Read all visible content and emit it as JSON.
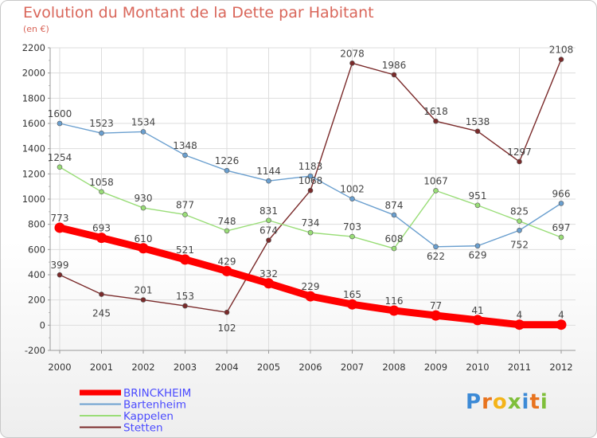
{
  "header": {
    "title": "Evolution du Montant de la Dette par Habitant",
    "subtitle": "(en €)"
  },
  "logo": {
    "text": "Proxiti",
    "letters": [
      "P",
      "r",
      "o",
      "x",
      "i",
      "t",
      "i"
    ],
    "colors": [
      "#3c8ad6",
      "#e8731e",
      "#f4b418",
      "#7fbf3a",
      "#3c8ad6",
      "#e8731e",
      "#7fbf3a"
    ]
  },
  "chart_data": {
    "type": "line",
    "title": "Evolution du Montant de la Dette par Habitant",
    "subtitle": "(en €)",
    "xlabel": "",
    "ylabel": "",
    "x": [
      "2000",
      "2001",
      "2002",
      "2003",
      "2004",
      "2005",
      "2006",
      "2007",
      "2008",
      "2009",
      "2010",
      "2011",
      "2012"
    ],
    "ylim": [
      -200,
      2200
    ],
    "yticks": [
      -200,
      0,
      200,
      400,
      600,
      800,
      1000,
      1200,
      1400,
      1600,
      1800,
      2000,
      2200
    ],
    "grid": true,
    "legend_position": "bottom-left",
    "series": [
      {
        "name": "BRINCKHEIM",
        "color": "#ff0000",
        "values": [
          773,
          693,
          610,
          521,
          429,
          332,
          229,
          165,
          116,
          77,
          41,
          4,
          4
        ],
        "labels": [
          "773",
          "693",
          "610",
          "521",
          "429",
          "332",
          "229",
          "165",
          "116",
          "77",
          "41",
          "4",
          "4"
        ]
      },
      {
        "name": "Bartenheim",
        "color": "#6a9fcf",
        "values": [
          1600,
          1523,
          1534,
          1348,
          1226,
          1144,
          1183,
          1002,
          874,
          622,
          629,
          752,
          966
        ],
        "labels": [
          "1600",
          "1523",
          "1534",
          "1348",
          "1226",
          "1144",
          "1183",
          "1002",
          "874",
          "622",
          "629",
          "752",
          "966"
        ]
      },
      {
        "name": "Kappelen",
        "color": "#99dd77",
        "values": [
          1254,
          1058,
          930,
          877,
          748,
          831,
          734,
          703,
          608,
          1067,
          951,
          825,
          697
        ],
        "labels": [
          "1254",
          "1058",
          "930",
          "877",
          "748",
          "831",
          "734",
          "703",
          "608",
          "1067",
          "951",
          "825",
          "697"
        ]
      },
      {
        "name": "Stetten",
        "color": "#7a2a2a",
        "values": [
          399,
          245,
          201,
          153,
          102,
          674,
          1068,
          2078,
          1986,
          1618,
          1538,
          1297,
          2108
        ],
        "labels": [
          "399",
          "245",
          "201",
          "153",
          "102",
          "674",
          "1068",
          "2078",
          "1986",
          "1618",
          "1538",
          "1297",
          "2108"
        ]
      }
    ]
  }
}
